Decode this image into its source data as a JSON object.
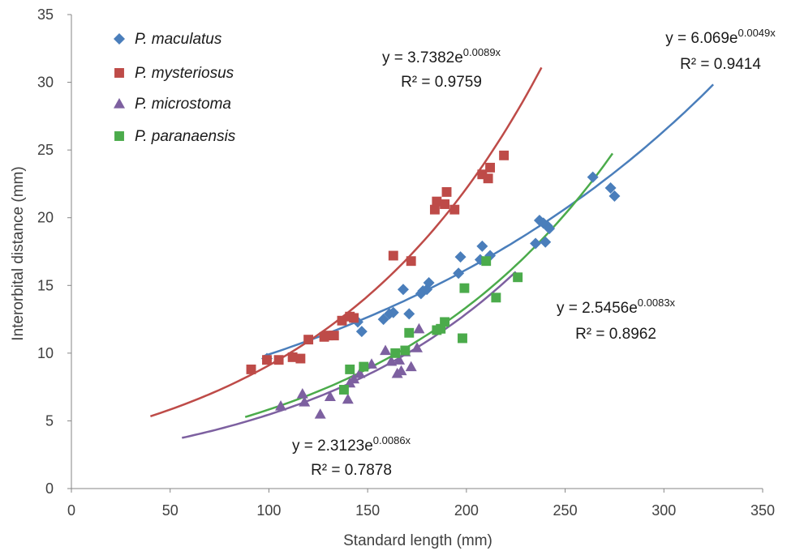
{
  "chart_data": {
    "type": "scatter",
    "title": "",
    "xlabel": "Standard length (mm)",
    "ylabel": "Interorbital distance (mm)",
    "xlim": [
      0,
      350
    ],
    "ylim": [
      0,
      35
    ],
    "xticks": [
      0,
      50,
      100,
      150,
      200,
      250,
      300,
      350
    ],
    "yticks": [
      0,
      5,
      10,
      15,
      20,
      25,
      30,
      35
    ],
    "grid": false,
    "legend_position": "top-left",
    "series": [
      {
        "name": "P. maculatus",
        "marker": "diamond",
        "color": "#4a7ebb",
        "trend": {
          "type": "exponential",
          "a": 6.069,
          "b": 0.0049,
          "x_range": [
            97,
            325
          ],
          "equation_base": "y = 6.069e",
          "equation_exp": "0.0049x",
          "r2_label": "R² = 0.9414"
        },
        "points": [
          [
            99,
            9.6
          ],
          [
            145,
            12.3
          ],
          [
            147,
            11.6
          ],
          [
            158,
            12.5
          ],
          [
            161,
            12.9
          ],
          [
            163,
            13.0
          ],
          [
            168,
            14.7
          ],
          [
            171,
            12.9
          ],
          [
            177,
            14.4
          ],
          [
            178,
            14.6
          ],
          [
            180,
            14.7
          ],
          [
            181,
            15.2
          ],
          [
            196,
            15.9
          ],
          [
            197,
            17.1
          ],
          [
            207,
            16.9
          ],
          [
            208,
            17.9
          ],
          [
            212,
            17.2
          ],
          [
            235,
            18.1
          ],
          [
            237,
            19.8
          ],
          [
            239,
            19.6
          ],
          [
            240,
            18.2
          ],
          [
            241,
            19.4
          ],
          [
            242,
            19.2
          ],
          [
            264,
            23.0
          ],
          [
            273,
            22.2
          ],
          [
            275,
            21.6
          ]
        ]
      },
      {
        "name": "P. mysteriosus",
        "marker": "square",
        "color": "#be4b48",
        "trend": {
          "type": "exponential",
          "a": 3.7382,
          "b": 0.0089,
          "x_range": [
            40,
            238
          ],
          "equation_base": "y = 3.7382e",
          "equation_exp": "0.0089x",
          "r2_label": "R² = 0.9759"
        },
        "points": [
          [
            91,
            8.8
          ],
          [
            99,
            9.5
          ],
          [
            105,
            9.5
          ],
          [
            112,
            9.7
          ],
          [
            116,
            9.6
          ],
          [
            120,
            11.0
          ],
          [
            128,
            11.2
          ],
          [
            130,
            11.3
          ],
          [
            133,
            11.3
          ],
          [
            137,
            12.4
          ],
          [
            141,
            12.7
          ],
          [
            143,
            12.6
          ],
          [
            163,
            17.2
          ],
          [
            172,
            16.8
          ],
          [
            184,
            20.6
          ],
          [
            185,
            21.2
          ],
          [
            189,
            21.0
          ],
          [
            190,
            21.9
          ],
          [
            194,
            20.6
          ],
          [
            208,
            23.2
          ],
          [
            211,
            22.9
          ],
          [
            212,
            23.7
          ],
          [
            219,
            24.6
          ]
        ]
      },
      {
        "name": "P. microstoma",
        "marker": "triangle",
        "color": "#7d60a0",
        "trend": {
          "type": "exponential",
          "a": 2.3123,
          "b": 0.0086,
          "x_range": [
            56,
            225
          ],
          "equation_base": "y = 2.3123e",
          "equation_exp": "0.0086x",
          "r2_label": "R² = 0.7878"
        },
        "points": [
          [
            106,
            6.1
          ],
          [
            117,
            7.0
          ],
          [
            118,
            6.4
          ],
          [
            126,
            5.5
          ],
          [
            131,
            6.8
          ],
          [
            140,
            6.6
          ],
          [
            141,
            7.8
          ],
          [
            143,
            8.1
          ],
          [
            146,
            8.5
          ],
          [
            152,
            9.2
          ],
          [
            159,
            10.2
          ],
          [
            162,
            9.4
          ],
          [
            165,
            8.5
          ],
          [
            166,
            9.5
          ],
          [
            167,
            8.7
          ],
          [
            169,
            10.1
          ],
          [
            172,
            9.0
          ],
          [
            175,
            10.4
          ],
          [
            176,
            11.8
          ]
        ]
      },
      {
        "name": "P. paranaensis",
        "marker": "square",
        "color": "#4bab4b",
        "trend": {
          "type": "exponential",
          "a": 2.5456,
          "b": 0.0083,
          "x_range": [
            88,
            274
          ],
          "equation_base": "y = 2.5456e",
          "equation_exp": "0.0083x",
          "r2_label": "R² = 0.8962"
        },
        "points": [
          [
            138,
            7.3
          ],
          [
            141,
            8.8
          ],
          [
            148,
            9.0
          ],
          [
            164,
            10.0
          ],
          [
            169,
            10.2
          ],
          [
            171,
            11.5
          ],
          [
            185,
            11.7
          ],
          [
            187,
            11.8
          ],
          [
            189,
            12.3
          ],
          [
            198,
            11.1
          ],
          [
            199,
            14.8
          ],
          [
            210,
            16.8
          ],
          [
            215,
            14.1
          ],
          [
            226,
            15.6
          ]
        ]
      }
    ]
  }
}
